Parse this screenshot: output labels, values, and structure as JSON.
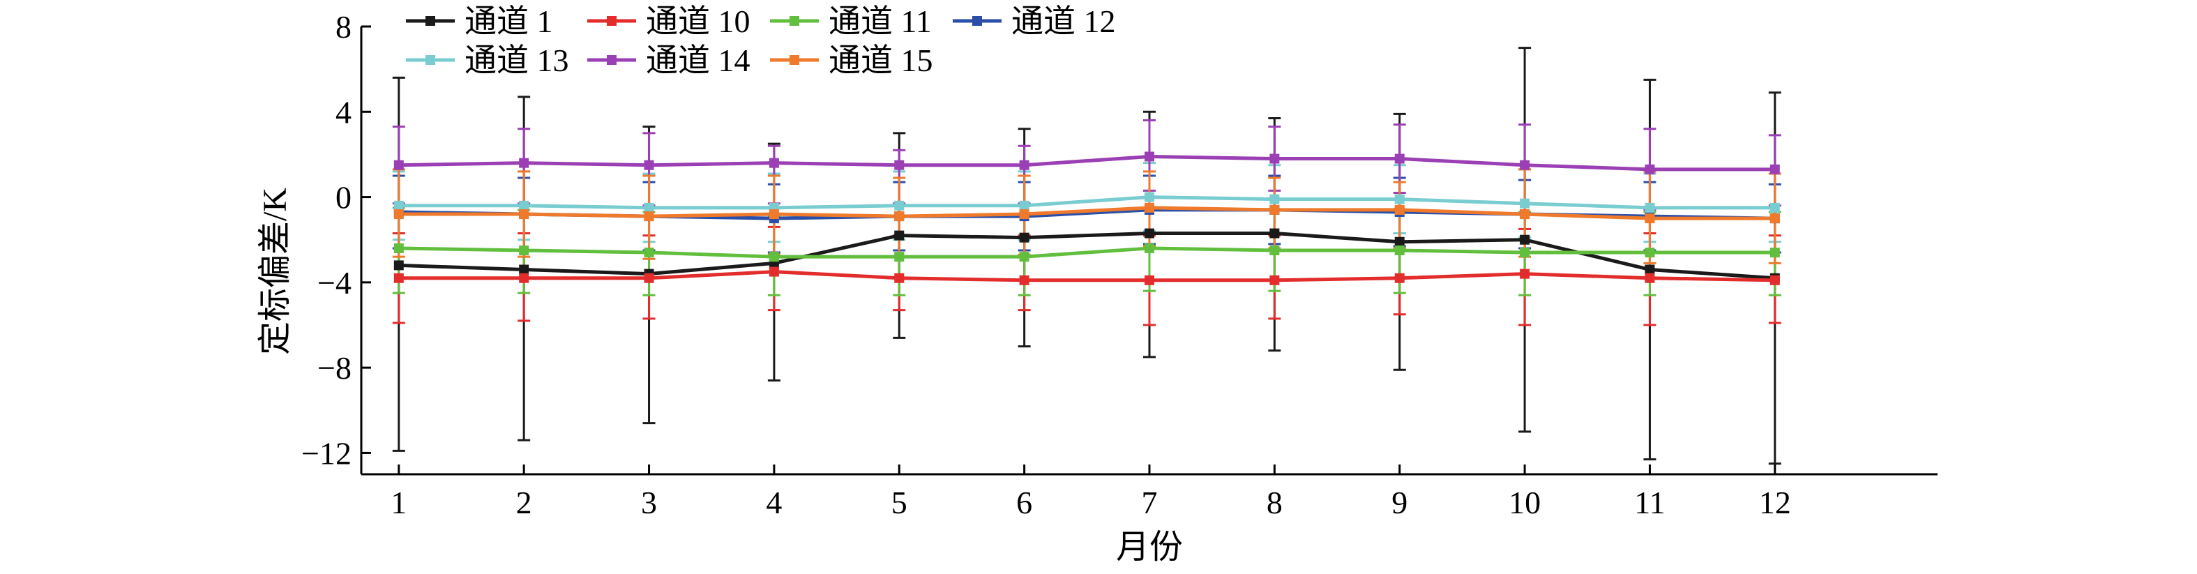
{
  "chart_data": {
    "type": "line",
    "title": "",
    "xlabel": "月份",
    "ylabel": "定标偏差/K",
    "x": [
      1,
      2,
      3,
      4,
      5,
      6,
      7,
      8,
      9,
      10,
      11,
      12
    ],
    "x_ticks": [
      "1",
      "2",
      "3",
      "4",
      "5",
      "6",
      "7",
      "8",
      "9",
      "10",
      "11",
      "12"
    ],
    "xlim": [
      0.7,
      13.3
    ],
    "ylim": [
      -13,
      8
    ],
    "y_ticks": [
      "8",
      "4",
      "0",
      "−4",
      "−8",
      "−12"
    ],
    "y_tick_values": [
      8,
      4,
      0,
      -4,
      -8,
      -12
    ],
    "grid": false,
    "legend_position": "top-left",
    "series": [
      {
        "name": "通道 1",
        "color": "#1a1a1a",
        "values": [
          -3.2,
          -3.4,
          -3.6,
          -3.1,
          -1.8,
          -1.9,
          -1.7,
          -1.7,
          -2.1,
          -2.0,
          -3.4,
          -3.8
        ],
        "err_upper": [
          5.6,
          4.7,
          3.3,
          2.5,
          3.0,
          3.2,
          4.0,
          3.7,
          3.9,
          7.0,
          5.5,
          4.9
        ],
        "err_lower": [
          -11.9,
          -11.4,
          -10.6,
          -8.6,
          -6.6,
          -7.0,
          -7.5,
          -7.2,
          -8.1,
          -11.0,
          -12.3,
          -12.5
        ]
      },
      {
        "name": "通道 10",
        "color": "#e32d2d",
        "values": [
          -3.8,
          -3.8,
          -3.8,
          -3.5,
          -3.8,
          -3.9,
          -3.9,
          -3.9,
          -3.8,
          -3.6,
          -3.8,
          -3.9
        ],
        "err_upper": [
          -1.7,
          -1.7,
          -1.8,
          -1.4,
          -1.8,
          -1.8,
          -1.8,
          -1.8,
          -1.7,
          -1.5,
          -1.7,
          -1.8
        ],
        "err_lower": [
          -5.9,
          -5.8,
          -5.7,
          -5.3,
          -5.3,
          -5.3,
          -6.0,
          -5.7,
          -5.5,
          -6.0,
          -6.0,
          -5.9
        ]
      },
      {
        "name": "通道 11",
        "color": "#62bf3e",
        "values": [
          -2.4,
          -2.5,
          -2.6,
          -2.8,
          -2.8,
          -2.8,
          -2.4,
          -2.5,
          -2.5,
          -2.6,
          -2.6,
          -2.6
        ],
        "err_upper": [
          -0.5,
          -0.6,
          -0.7,
          -0.9,
          -0.9,
          -0.9,
          -0.5,
          -0.6,
          -0.6,
          -0.7,
          -0.7,
          -0.7
        ],
        "err_lower": [
          -4.5,
          -4.5,
          -4.6,
          -4.6,
          -4.6,
          -4.6,
          -4.4,
          -4.4,
          -4.5,
          -4.6,
          -4.6,
          -4.6
        ]
      },
      {
        "name": "通道 12",
        "color": "#2b4fa8",
        "values": [
          -0.7,
          -0.8,
          -0.9,
          -1.0,
          -0.9,
          -0.9,
          -0.6,
          -0.6,
          -0.7,
          -0.8,
          -0.9,
          -1.0
        ],
        "err_upper": [
          1.0,
          0.9,
          0.7,
          0.6,
          0.7,
          0.7,
          1.0,
          1.0,
          0.9,
          0.8,
          0.7,
          0.6
        ],
        "err_lower": [
          -2.4,
          -2.5,
          -2.5,
          -2.6,
          -2.5,
          -2.5,
          -2.2,
          -2.2,
          -2.3,
          -2.4,
          -2.5,
          -2.6
        ]
      },
      {
        "name": "通道 13",
        "color": "#79cdd0",
        "values": [
          -0.4,
          -0.4,
          -0.5,
          -0.5,
          -0.4,
          -0.4,
          0.0,
          -0.1,
          -0.1,
          -0.3,
          -0.5,
          -0.5
        ],
        "err_upper": [
          1.2,
          1.2,
          1.1,
          1.1,
          1.2,
          1.2,
          1.6,
          1.5,
          1.5,
          1.3,
          1.1,
          1.1
        ],
        "err_lower": [
          -2.0,
          -2.0,
          -2.1,
          -2.1,
          -2.0,
          -2.0,
          -1.6,
          -1.7,
          -1.7,
          -1.9,
          -2.1,
          -2.1
        ]
      },
      {
        "name": "通道 14",
        "color": "#9b3fb5",
        "values": [
          1.5,
          1.6,
          1.5,
          1.6,
          1.5,
          1.5,
          1.9,
          1.8,
          1.8,
          1.5,
          1.3,
          1.3
        ],
        "err_upper": [
          3.3,
          3.2,
          3.0,
          2.4,
          2.2,
          2.4,
          3.6,
          3.3,
          3.4,
          3.4,
          3.2,
          2.9
        ],
        "err_lower": [
          -0.3,
          -0.3,
          -0.4,
          -0.3,
          -0.3,
          -0.3,
          0.3,
          0.3,
          0.2,
          -0.3,
          -0.6,
          -0.4
        ]
      },
      {
        "name": "通道 15",
        "color": "#ef7a2c",
        "values": [
          -0.8,
          -0.8,
          -0.9,
          -0.8,
          -0.9,
          -0.8,
          -0.5,
          -0.6,
          -0.6,
          -0.8,
          -1.0,
          -1.0
        ],
        "err_upper": [
          1.3,
          1.2,
          1.0,
          1.0,
          0.9,
          1.0,
          1.2,
          0.9,
          0.7,
          1.3,
          1.2,
          1.1
        ],
        "err_lower": [
          -2.8,
          -2.8,
          -2.9,
          -2.7,
          -2.8,
          -2.7,
          -2.3,
          -2.4,
          -2.4,
          -2.8,
          -3.1,
          -3.1
        ]
      }
    ]
  }
}
